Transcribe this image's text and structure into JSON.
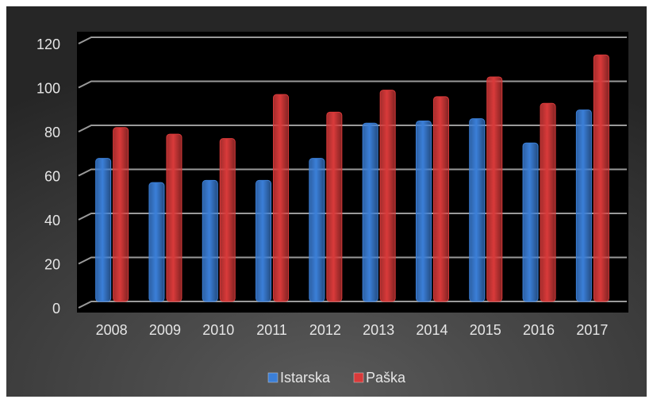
{
  "chart_data": {
    "type": "bar",
    "categories": [
      "2008",
      "2009",
      "2010",
      "2011",
      "2012",
      "2013",
      "2014",
      "2015",
      "2016",
      "2017"
    ],
    "series": [
      {
        "name": "Istarska",
        "color": "#3b7fd8",
        "values": [
          65,
          54,
          55,
          55,
          65,
          81,
          82,
          83,
          72,
          87
        ]
      },
      {
        "name": "Paška",
        "color": "#d93a3a",
        "values": [
          79,
          76,
          74,
          94,
          86,
          96,
          93,
          102,
          90,
          112
        ]
      }
    ],
    "ylim": [
      0,
      120
    ],
    "yticks": [
      0,
      20,
      40,
      60,
      80,
      100,
      120
    ],
    "grid": true,
    "legend": "bottom"
  }
}
